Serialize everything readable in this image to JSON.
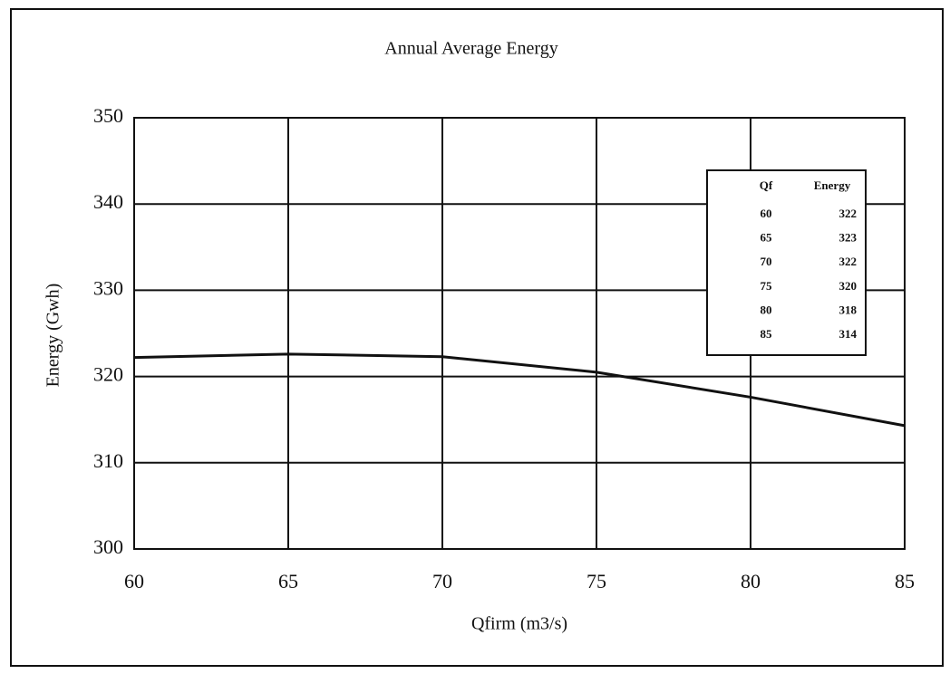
{
  "chart_data": {
    "type": "line",
    "title": "Annual Average Energy",
    "x_label": "Qfirm (m3/s)",
    "y_label": "Energy (Gwh)",
    "x": [
      60,
      65,
      70,
      75,
      80,
      85
    ],
    "values": [
      322.2,
      322.6,
      322.3,
      320.5,
      317.6,
      314.3
    ],
    "color": "#111111",
    "xlim": [
      60,
      85
    ],
    "xticks": [
      60,
      65,
      70,
      75,
      80,
      85
    ],
    "ylim": [
      300,
      350
    ],
    "yticks": [
      300,
      310,
      320,
      330,
      340,
      350
    ],
    "grid": true,
    "table": {
      "columns": [
        "Qf",
        "Energy"
      ],
      "rows": [
        [
          60,
          322
        ],
        [
          65,
          323
        ],
        [
          70,
          322
        ],
        [
          75,
          320
        ],
        [
          80,
          318
        ],
        [
          85,
          314
        ]
      ]
    }
  }
}
